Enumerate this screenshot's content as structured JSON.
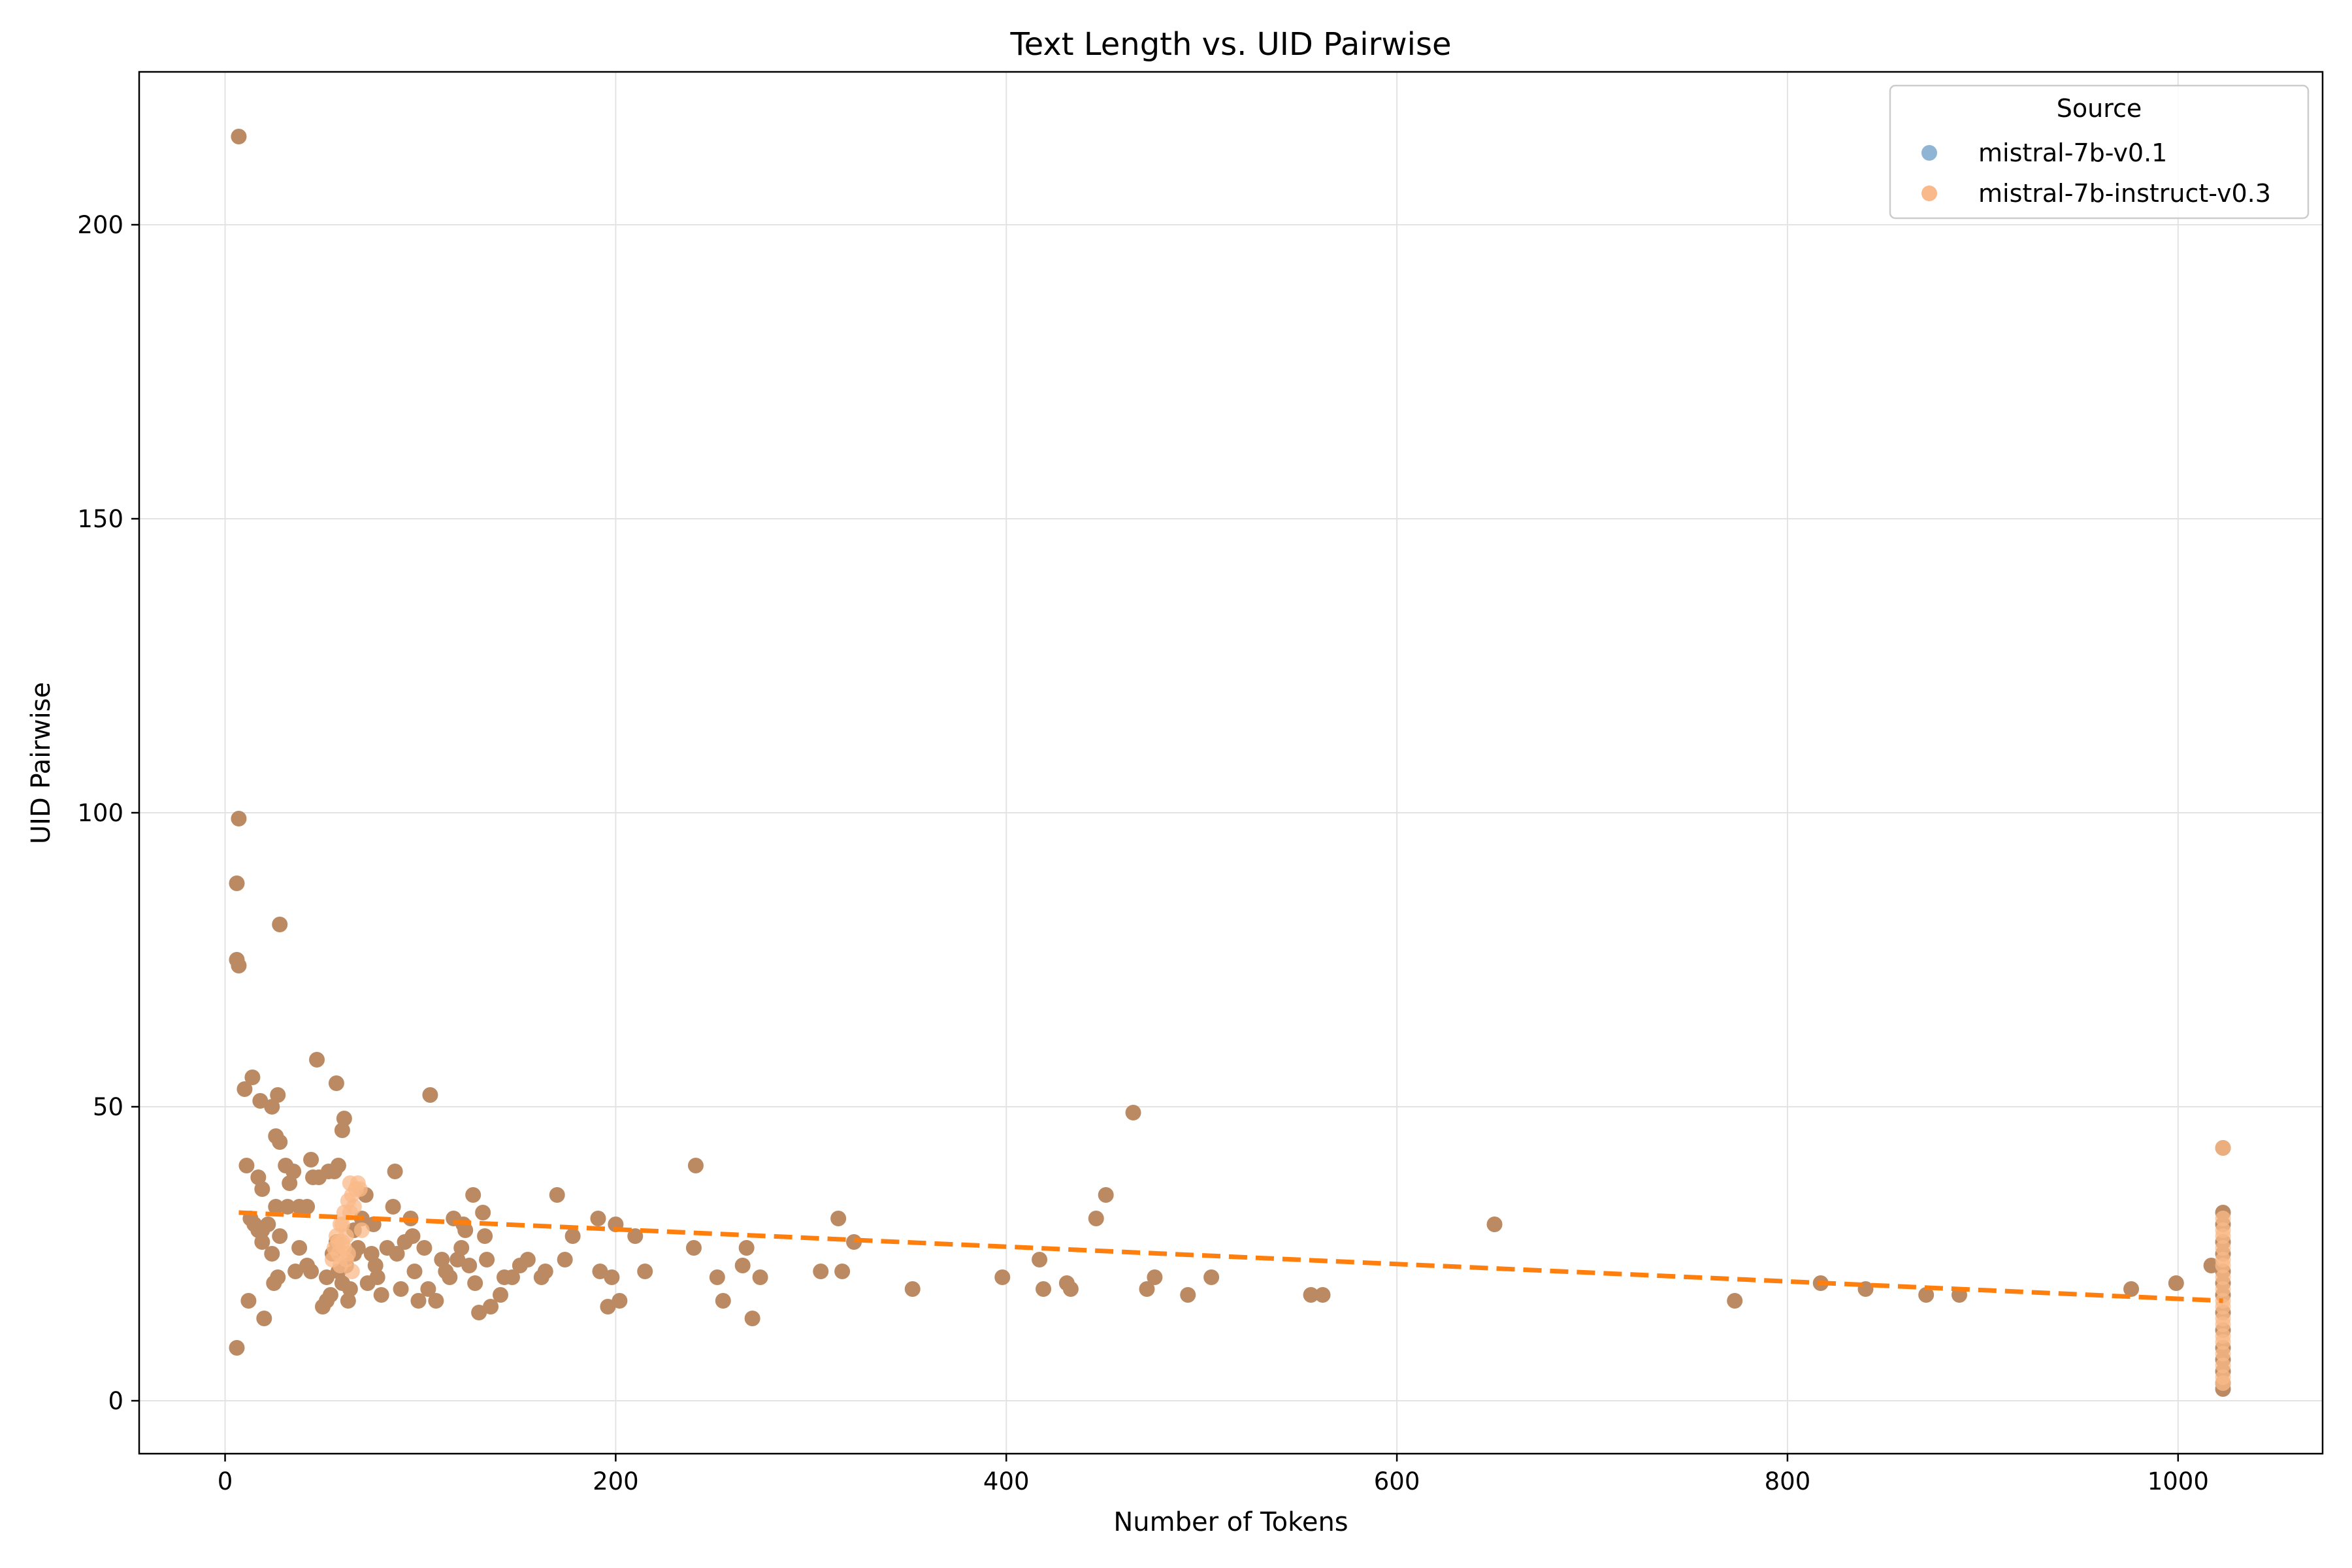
{
  "chart_data": {
    "type": "scatter",
    "title": "Text Length vs. UID Pairwise",
    "xlabel": "Number of Tokens",
    "ylabel": "UID Pairwise",
    "xlim": [
      -44,
      1074
    ],
    "ylim": [
      -9,
      226
    ],
    "xticks": [
      0,
      200,
      400,
      600,
      800,
      1000
    ],
    "yticks": [
      0,
      50,
      100,
      150,
      200
    ],
    "grid": true,
    "legend": {
      "title": "Source",
      "placement": "top-right",
      "entries": [
        "mistral-7b-v0.1",
        "mistral-7b-instruct-v0.3"
      ]
    },
    "colors": {
      "series_a": "#8fb4d4",
      "series_b": "#f9b98a",
      "overlap": "#bb8a62",
      "trend": "#ff7f0e",
      "grid": "#e3e3e3"
    },
    "series": [
      {
        "name": "mistral-7b-v0.1",
        "points": [
          [
            7,
            215
          ],
          [
            7,
            99
          ],
          [
            6,
            88
          ],
          [
            6,
            75
          ],
          [
            7,
            74
          ],
          [
            10,
            53
          ],
          [
            14,
            55
          ],
          [
            18,
            51
          ],
          [
            27,
            52
          ],
          [
            28,
            81
          ],
          [
            47,
            58
          ],
          [
            57,
            54
          ],
          [
            11,
            40
          ],
          [
            17,
            38
          ],
          [
            19,
            36
          ],
          [
            13,
            31
          ],
          [
            15,
            30
          ],
          [
            17,
            29
          ],
          [
            19,
            29
          ],
          [
            22,
            30
          ],
          [
            19,
            27
          ],
          [
            12,
            17
          ],
          [
            6,
            9
          ],
          [
            20,
            14
          ],
          [
            24,
            50
          ],
          [
            26,
            45
          ],
          [
            28,
            44
          ],
          [
            31,
            40
          ],
          [
            33,
            37
          ],
          [
            35,
            39
          ],
          [
            38,
            33
          ],
          [
            42,
            33
          ],
          [
            44,
            41
          ],
          [
            45,
            38
          ],
          [
            48,
            38
          ],
          [
            53,
            39
          ],
          [
            56,
            39
          ],
          [
            58,
            40
          ],
          [
            60,
            46
          ],
          [
            61,
            48
          ],
          [
            26,
            33
          ],
          [
            24,
            25
          ],
          [
            27,
            21
          ],
          [
            25,
            20
          ],
          [
            28,
            28
          ],
          [
            32,
            33
          ],
          [
            38,
            26
          ],
          [
            42,
            23
          ],
          [
            44,
            22
          ],
          [
            36,
            22
          ],
          [
            50,
            16
          ],
          [
            52,
            17
          ],
          [
            52,
            21
          ],
          [
            54,
            18
          ],
          [
            55,
            25
          ],
          [
            57,
            27
          ],
          [
            58,
            22
          ],
          [
            60,
            20
          ],
          [
            62,
            23
          ],
          [
            63,
            17
          ],
          [
            64,
            19
          ],
          [
            66,
            25
          ],
          [
            66,
            29
          ],
          [
            68,
            26
          ],
          [
            70,
            31
          ],
          [
            72,
            35
          ],
          [
            73,
            20
          ],
          [
            75,
            25
          ],
          [
            76,
            30
          ],
          [
            77,
            23
          ],
          [
            78,
            21
          ],
          [
            80,
            18
          ],
          [
            83,
            26
          ],
          [
            86,
            33
          ],
          [
            87,
            39
          ],
          [
            88,
            25
          ],
          [
            90,
            19
          ],
          [
            92,
            27
          ],
          [
            95,
            31
          ],
          [
            96,
            28
          ],
          [
            97,
            22
          ],
          [
            99,
            17
          ],
          [
            102,
            26
          ],
          [
            104,
            19
          ],
          [
            105,
            52
          ],
          [
            108,
            17
          ],
          [
            111,
            24
          ],
          [
            113,
            22
          ],
          [
            115,
            21
          ],
          [
            117,
            31
          ],
          [
            119,
            24
          ],
          [
            121,
            26
          ],
          [
            122,
            30
          ],
          [
            123,
            29
          ],
          [
            125,
            23
          ],
          [
            127,
            35
          ],
          [
            128,
            20
          ],
          [
            130,
            15
          ],
          [
            132,
            32
          ],
          [
            133,
            28
          ],
          [
            134,
            24
          ],
          [
            136,
            16
          ],
          [
            141,
            18
          ],
          [
            143,
            21
          ],
          [
            147,
            21
          ],
          [
            151,
            23
          ],
          [
            155,
            24
          ],
          [
            162,
            21
          ],
          [
            164,
            22
          ],
          [
            170,
            35
          ],
          [
            174,
            24
          ],
          [
            178,
            28
          ],
          [
            191,
            31
          ],
          [
            192,
            22
          ],
          [
            196,
            16
          ],
          [
            198,
            21
          ],
          [
            200,
            30
          ],
          [
            202,
            17
          ],
          [
            210,
            28
          ],
          [
            215,
            22
          ],
          [
            240,
            26
          ],
          [
            241,
            40
          ],
          [
            252,
            21
          ],
          [
            255,
            17
          ],
          [
            265,
            23
          ],
          [
            267,
            26
          ],
          [
            270,
            14
          ],
          [
            274,
            21
          ],
          [
            305,
            22
          ],
          [
            314,
            31
          ],
          [
            316,
            22
          ],
          [
            322,
            27
          ],
          [
            352,
            19
          ],
          [
            398,
            21
          ],
          [
            417,
            24
          ],
          [
            419,
            19
          ],
          [
            431,
            20
          ],
          [
            433,
            19
          ],
          [
            446,
            31
          ],
          [
            451,
            35
          ],
          [
            465,
            49
          ],
          [
            472,
            19
          ],
          [
            476,
            21
          ],
          [
            493,
            18
          ],
          [
            505,
            21
          ],
          [
            556,
            18
          ],
          [
            562,
            18
          ],
          [
            650,
            30
          ],
          [
            773,
            17
          ],
          [
            817,
            20
          ],
          [
            840,
            19
          ],
          [
            871,
            18
          ],
          [
            888,
            18
          ],
          [
            976,
            19
          ],
          [
            999,
            20
          ],
          [
            1017,
            23
          ],
          [
            1023,
            43
          ],
          [
            1023,
            32
          ],
          [
            1023,
            30
          ],
          [
            1023,
            27
          ],
          [
            1023,
            25
          ],
          [
            1023,
            22
          ],
          [
            1023,
            20
          ],
          [
            1023,
            18
          ],
          [
            1023,
            15
          ],
          [
            1023,
            12
          ],
          [
            1023,
            9
          ],
          [
            1023,
            7
          ],
          [
            1023,
            5
          ],
          [
            1023,
            3
          ],
          [
            1023,
            2
          ]
        ]
      },
      {
        "name": "mistral-7b-instruct-v0.3",
        "points": [
          [
            55,
            24
          ],
          [
            56,
            26
          ],
          [
            57,
            28
          ],
          [
            58,
            25
          ],
          [
            59,
            23
          ],
          [
            60,
            27
          ],
          [
            60,
            30
          ],
          [
            61,
            26
          ],
          [
            62,
            24
          ],
          [
            62,
            28
          ],
          [
            63,
            25
          ],
          [
            64,
            32
          ],
          [
            65,
            35
          ],
          [
            66,
            33
          ],
          [
            67,
            36
          ],
          [
            68,
            37
          ],
          [
            69,
            36
          ],
          [
            70,
            29
          ],
          [
            58,
            27
          ],
          [
            59,
            30
          ],
          [
            61,
            32
          ],
          [
            63,
            34
          ],
          [
            64,
            37
          ],
          [
            65,
            22
          ],
          [
            1023,
            43
          ],
          [
            1023,
            31
          ],
          [
            1023,
            29
          ],
          [
            1023,
            28
          ],
          [
            1023,
            26
          ],
          [
            1023,
            24
          ],
          [
            1023,
            23
          ],
          [
            1023,
            21
          ],
          [
            1023,
            19
          ],
          [
            1023,
            17
          ],
          [
            1023,
            16
          ],
          [
            1023,
            14
          ],
          [
            1023,
            13
          ],
          [
            1023,
            11
          ],
          [
            1023,
            10
          ],
          [
            1023,
            8
          ],
          [
            1023,
            6
          ],
          [
            1023,
            4
          ],
          [
            1023,
            3
          ]
        ]
      }
    ],
    "trendline": {
      "style": "dashed",
      "x": [
        7,
        1023
      ],
      "y": [
        32,
        17
      ]
    }
  }
}
